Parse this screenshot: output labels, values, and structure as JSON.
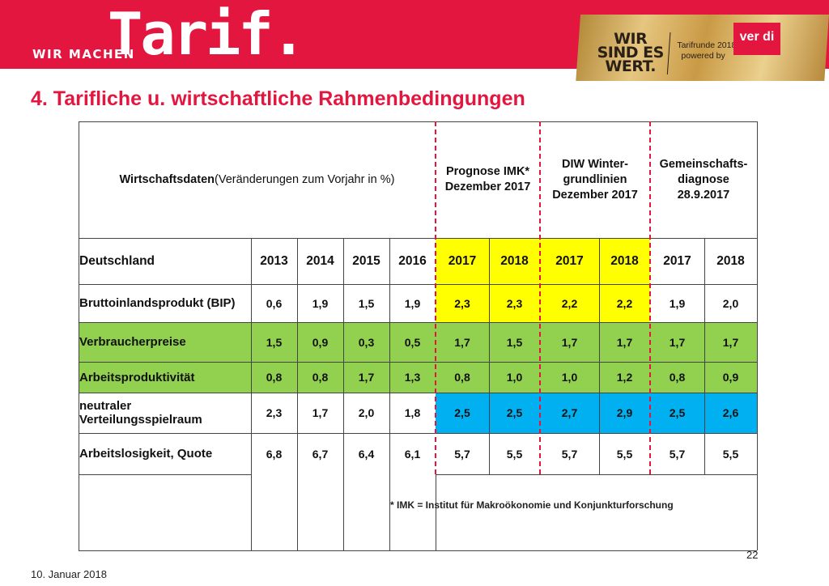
{
  "header": {
    "brand_small": "WIR MACHEN",
    "brand_big": "Tarif.",
    "badge_slogan_1": "WIR",
    "badge_slogan_2": "SIND ES",
    "badge_slogan_3": "WERT.",
    "badge_line_1": "Tarifrunde 2018",
    "badge_line_2": "powered by",
    "verdi_logo": "ver di"
  },
  "slide_title": "4. Tarifliche u. wirtschaftliche Rahmenbedingungen",
  "table": {
    "wd_label_bold": "Wirtschaftsdaten",
    "wd_label_rest": " (Veränderungen zum Vorjahr in %)",
    "group_headers": [
      "Prognose IMK* Dezember 2017",
      "DIW Winter-grundlinien Dezember 2017",
      "Gemeinschafts-diagnose 28.9.2017"
    ],
    "year_row_label": "Deutschland",
    "years": [
      "2013",
      "2014",
      "2015",
      "2016",
      "2017",
      "2018",
      "2017",
      "2018",
      "2017",
      "2018"
    ],
    "rows": [
      {
        "label": "Bruttoinlandsprodukt (BIP)",
        "values": [
          "0,6",
          "1,9",
          "1,5",
          "1,9",
          "2,3",
          "2,3",
          "2,2",
          "2,2",
          "1,9",
          "2,0"
        ]
      },
      {
        "label": "Verbraucherpreise",
        "values": [
          "1,5",
          "0,9",
          "0,3",
          "0,5",
          "1,7",
          "1,5",
          "1,7",
          "1,7",
          "1,7",
          "1,7"
        ]
      },
      {
        "label": "Arbeitsproduktivität",
        "values": [
          "0,8",
          "0,8",
          "1,7",
          "1,3",
          "0,8",
          "1,0",
          "1,0",
          "1,2",
          "0,8",
          "0,9"
        ]
      },
      {
        "label": "neutraler Verteilungsspielraum",
        "values": [
          "2,3",
          "1,7",
          "2,0",
          "1,8",
          "2,5",
          "2,5",
          "2,7",
          "2,9",
          "2,5",
          "2,6"
        ]
      },
      {
        "label": "Arbeitslosigkeit, Quote",
        "values": [
          "6,8",
          "6,7",
          "6,4",
          "6,1",
          "5,7",
          "5,5",
          "5,7",
          "5,5",
          "5,7",
          "5,5"
        ]
      }
    ],
    "footnote": "*     IMK = Institut für Makroökonomie und Konjunkturforschung"
  },
  "colors": {
    "brand_red": "#e3163f",
    "highlight_yellow": "#ffff00",
    "highlight_green": "#92d050",
    "highlight_blue": "#00b0f0"
  },
  "footer": {
    "date": "10. Januar 2018",
    "page_number": "22"
  }
}
